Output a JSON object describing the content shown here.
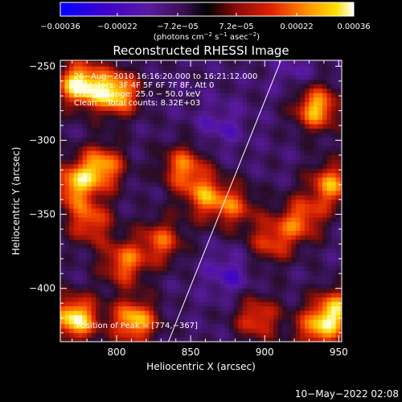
{
  "chart_data": {
    "type": "heatmap",
    "title": "Reconstructed RHESSI Image",
    "xlabel": "Heliocentric X (arcsec)",
    "ylabel": "Heliocentric Y (arcsec)",
    "xlim": [
      762,
      952
    ],
    "ylim": [
      -436,
      -246
    ],
    "x_ticks": [
      800,
      850,
      900,
      950
    ],
    "y_ticks": [
      -250,
      -300,
      -350,
      -400
    ],
    "x_tick_labels": [
      "800",
      "850",
      "900",
      "950"
    ],
    "y_tick_labels": [
      "−250",
      "−300",
      "−350",
      "−400"
    ],
    "colorbar": {
      "range": [
        -0.00036,
        0.00036
      ],
      "tick_values": [
        -0.00036,
        -0.00022,
        -7.2e-05,
        7.2e-05,
        0.00022,
        0.00036
      ],
      "tick_labels": [
        "−0.00036",
        "−0.00022",
        "−7.2e−05",
        "7.2e−05",
        "0.00022",
        "0.00036"
      ],
      "units_main": "(photons cm",
      "units_exp1": "−2",
      "units_mid": " s",
      "units_exp2": "−1",
      "units_end": " asec",
      "units_exp3": "−2",
      "units_close": ")"
    },
    "info_lines": [
      "26−Aug−2010 16:16:20.000 to 16:21:12.000",
      "Detectors: 3F 4F 5F 6F 7F 8F, Att 0",
      "Energy Range: 25.0 − 50.0 keV",
      "Clean    Total counts: 8.32E+03"
    ],
    "peak_label": "Position of Peak = [774,−367]",
    "limb_line": [
      [
        835,
        -436
      ],
      [
        911,
        -246
      ]
    ],
    "grid": false,
    "colormap": [
      "#0000ff",
      "#3a00c8",
      "#5a1aa0",
      "#4b2078",
      "#2a1030",
      "#6a1010",
      "#c01808",
      "#ff3800",
      "#ff8c00",
      "#ffd400",
      "#ffffd8"
    ],
    "hot_spots": [
      {
        "x": 775,
        "y": -262,
        "value": 0.00036
      },
      {
        "x": 800,
        "y": -268,
        "value": 0.00033
      },
      {
        "x": 790,
        "y": -318,
        "value": 0.00028
      },
      {
        "x": 770,
        "y": -330,
        "value": 0.00024
      },
      {
        "x": 782,
        "y": -355,
        "value": 0.0002
      },
      {
        "x": 805,
        "y": -383,
        "value": 0.00022
      },
      {
        "x": 772,
        "y": -420,
        "value": 0.00036
      },
      {
        "x": 812,
        "y": -422,
        "value": 0.00031
      },
      {
        "x": 845,
        "y": -318,
        "value": 0.00022
      },
      {
        "x": 860,
        "y": -338,
        "value": 0.0002
      },
      {
        "x": 830,
        "y": -368,
        "value": 0.00019
      },
      {
        "x": 880,
        "y": -345,
        "value": 0.00015
      },
      {
        "x": 935,
        "y": -278,
        "value": 0.0003
      },
      {
        "x": 945,
        "y": -330,
        "value": 0.00025
      },
      {
        "x": 925,
        "y": -353,
        "value": 0.0002
      },
      {
        "x": 905,
        "y": -368,
        "value": 0.00017
      },
      {
        "x": 948,
        "y": -415,
        "value": 0.00026
      },
      {
        "x": 935,
        "y": -428,
        "value": 0.0002
      },
      {
        "x": 895,
        "y": -420,
        "value": 0.00019
      },
      {
        "x": 870,
        "y": -290,
        "value": -0.00018
      },
      {
        "x": 875,
        "y": -390,
        "value": -0.0002
      },
      {
        "x": 920,
        "y": -255,
        "value": -0.00016
      }
    ]
  },
  "timestamp": "10−May−2022 02:08"
}
